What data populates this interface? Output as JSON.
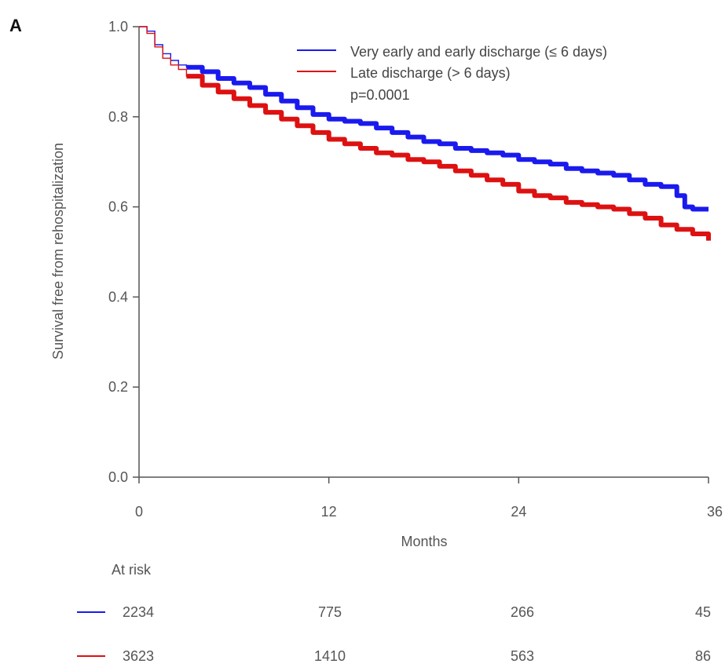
{
  "panel_label": "A",
  "chart_data": {
    "type": "line",
    "title": "",
    "xlabel": "Months",
    "ylabel": "Survival free from rehospitalization",
    "xlim": [
      0,
      36
    ],
    "ylim": [
      0,
      1.0
    ],
    "xticks": [
      "0",
      "12",
      "24",
      "36"
    ],
    "yticks": [
      "0.0",
      "0.2",
      "0.4",
      "0.6",
      "0.8",
      "1.0"
    ],
    "grid": false,
    "legend_position": "top-right",
    "pvalue": "p=0.0001",
    "series": [
      {
        "name": "Very early and early discharge (≤ 6 days)",
        "color": "#1a1aee",
        "x": [
          0,
          0.5,
          1.0,
          1.5,
          2.0,
          2.5,
          3.0,
          4,
          5,
          6,
          7,
          8,
          9,
          10,
          11,
          12,
          13,
          14,
          15,
          16,
          17,
          18,
          19,
          20,
          21,
          22,
          23,
          24,
          25,
          26,
          27,
          28,
          29,
          30,
          31,
          32,
          33,
          34,
          34.5,
          35,
          36
        ],
        "y": [
          1.0,
          0.99,
          0.96,
          0.94,
          0.925,
          0.915,
          0.91,
          0.9,
          0.885,
          0.875,
          0.865,
          0.85,
          0.835,
          0.82,
          0.805,
          0.795,
          0.79,
          0.785,
          0.775,
          0.765,
          0.755,
          0.745,
          0.74,
          0.73,
          0.725,
          0.72,
          0.715,
          0.705,
          0.7,
          0.695,
          0.685,
          0.68,
          0.675,
          0.67,
          0.66,
          0.65,
          0.645,
          0.625,
          0.6,
          0.595,
          0.595
        ]
      },
      {
        "name": "Late discharge (> 6 days)",
        "color": "#dd1111",
        "x": [
          0,
          0.5,
          1.0,
          1.5,
          2.0,
          2.5,
          3.0,
          4,
          5,
          6,
          7,
          8,
          9,
          10,
          11,
          12,
          13,
          14,
          15,
          16,
          17,
          18,
          19,
          20,
          21,
          22,
          23,
          24,
          25,
          26,
          27,
          28,
          29,
          30,
          31,
          32,
          33,
          34,
          35,
          36
        ],
        "y": [
          1.0,
          0.985,
          0.955,
          0.93,
          0.915,
          0.905,
          0.89,
          0.87,
          0.855,
          0.84,
          0.825,
          0.81,
          0.795,
          0.78,
          0.765,
          0.75,
          0.74,
          0.73,
          0.72,
          0.715,
          0.705,
          0.7,
          0.69,
          0.68,
          0.67,
          0.66,
          0.65,
          0.635,
          0.625,
          0.62,
          0.61,
          0.605,
          0.6,
          0.595,
          0.585,
          0.575,
          0.56,
          0.55,
          0.54,
          0.525
        ]
      }
    ]
  },
  "at_risk": {
    "label": "At risk",
    "rows": [
      {
        "color": "#1a1aee",
        "values": [
          "2234",
          "775",
          "266",
          "45"
        ]
      },
      {
        "color": "#dd1111",
        "values": [
          "3623",
          "1410",
          "563",
          "86"
        ]
      }
    ]
  }
}
